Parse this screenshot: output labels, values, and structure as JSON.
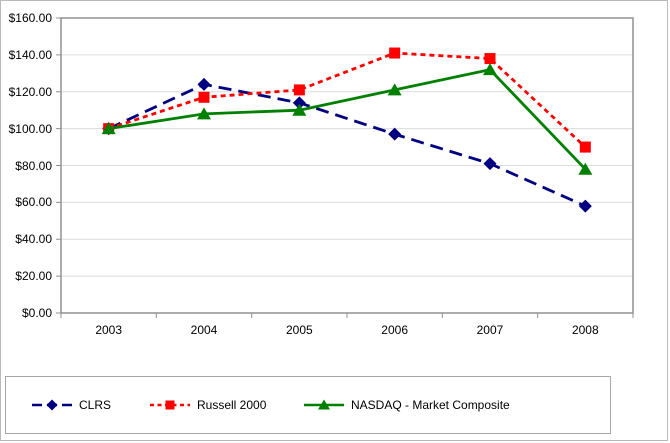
{
  "window": {
    "background": "#ffffff",
    "border_color": "#b9b9b9"
  },
  "chart_data": {
    "type": "line",
    "title": "",
    "xlabel": "",
    "ylabel": "",
    "categories": [
      "2003",
      "2004",
      "2005",
      "2006",
      "2007",
      "2008"
    ],
    "y_tick_labels": [
      "$160.00",
      "$140.00",
      "$120.00",
      "$100.00",
      "$80.00",
      "$60.00",
      "$40.00",
      "$20.00",
      "$0.00"
    ],
    "ylim": [
      0,
      160
    ],
    "y_tick_step": 20,
    "grid": "horizontal",
    "legend_position": "bottom",
    "series": [
      {
        "name": "CLRS",
        "color": "#000080",
        "marker": "diamond",
        "line_style": "dashed",
        "values": [
          100,
          124,
          114,
          97,
          81,
          58
        ]
      },
      {
        "name": "Russell 2000",
        "color": "#ff0000",
        "marker": "square",
        "line_style": "dotted",
        "values": [
          100,
          117,
          121,
          141,
          138,
          90
        ]
      },
      {
        "name": "NASDAQ - Market Composite",
        "color": "#008000",
        "marker": "triangle",
        "line_style": "solid",
        "values": [
          100,
          108,
          110,
          121,
          132,
          78
        ]
      }
    ],
    "colors": {
      "gridline": "#dcdcdc",
      "plot_border": "#909090",
      "text": "#000000"
    }
  }
}
